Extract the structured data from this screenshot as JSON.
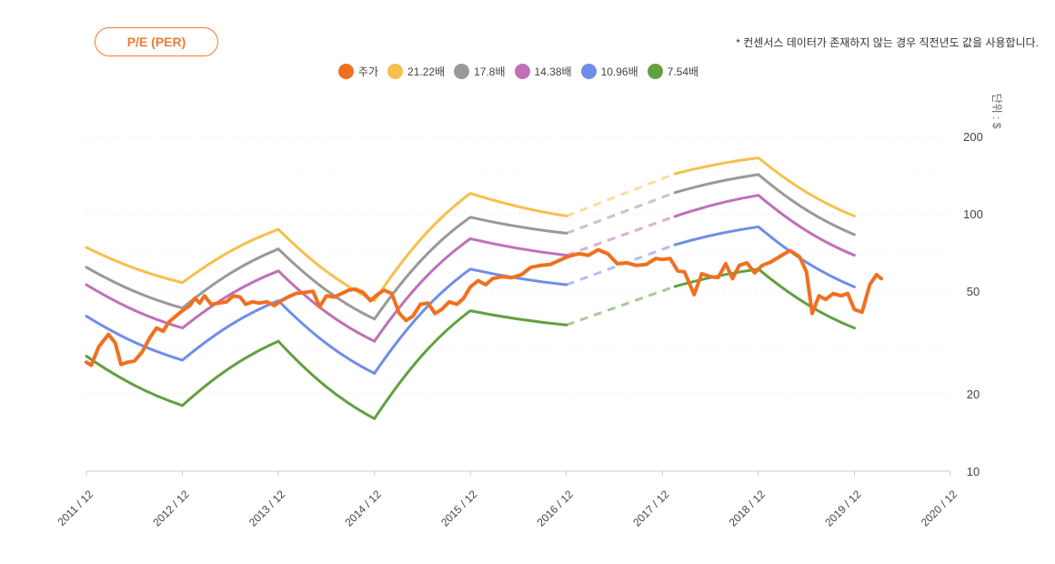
{
  "header": {
    "metric_button": "P/E (PER)",
    "note": "* 컨센서스 데이터가 존재하지 않는 경우 직전년도 값을 사용합니다."
  },
  "legend": [
    {
      "label": "주가",
      "color": "#f07020"
    },
    {
      "label": "21.22배",
      "color": "#f6c04d"
    },
    {
      "label": "17.8배",
      "color": "#999999"
    },
    {
      "label": "14.38배",
      "color": "#c070b8"
    },
    {
      "label": "10.96배",
      "color": "#6f8de8"
    },
    {
      "label": "7.54배",
      "color": "#62a040"
    }
  ],
  "chart_data": {
    "type": "line",
    "y_scale": "log",
    "ylabel": "단위 : $",
    "y_ticks": [
      10,
      20,
      50,
      100,
      200
    ],
    "ylim": [
      10,
      300
    ],
    "x_ticks": [
      "2011 / 12",
      "2012 / 12",
      "2013 / 12",
      "2014 / 12",
      "2015 / 12",
      "2016 / 12",
      "2017 / 12",
      "2018 / 12",
      "2019 / 12",
      "2020 / 12"
    ],
    "band_x": [
      2011.92,
      2012.92,
      2013.92,
      2014.92,
      2015.92,
      2016.92,
      2017.92,
      2018.92,
      2019.92
    ],
    "dashed_segment": [
      2016.92,
      2018.05
    ],
    "bands": [
      {
        "name": "21.22배",
        "color": "#f6c04d",
        "values": [
          74,
          54,
          87,
          46,
          120,
          98,
          140,
          165,
          98
        ]
      },
      {
        "name": "17.8배",
        "color": "#999999",
        "values": [
          62,
          43,
          73,
          39,
          97,
          84,
          118,
          142,
          83
        ]
      },
      {
        "name": "14.38배",
        "color": "#c070b8",
        "values": [
          53,
          36,
          60,
          32,
          80,
          69,
          95,
          118,
          69
        ]
      },
      {
        "name": "10.96배",
        "color": "#6f8de8",
        "values": [
          40,
          27,
          46,
          24,
          61,
          53,
          74,
          89,
          52
        ]
      },
      {
        "name": "7.54배",
        "color": "#62a040",
        "values": [
          28,
          18,
          32,
          16,
          42,
          37,
          51,
          61,
          36
        ]
      }
    ],
    "price": {
      "name": "주가",
      "color": "#f07020",
      "points": [
        [
          2011.92,
          26.5
        ],
        [
          2011.97,
          25.8
        ],
        [
          2012.05,
          30.5
        ],
        [
          2012.15,
          34
        ],
        [
          2012.22,
          31.5
        ],
        [
          2012.28,
          26
        ],
        [
          2012.35,
          26.5
        ],
        [
          2012.42,
          26.8
        ],
        [
          2012.5,
          29
        ],
        [
          2012.58,
          33
        ],
        [
          2012.65,
          36
        ],
        [
          2012.72,
          35
        ],
        [
          2012.78,
          38
        ],
        [
          2012.85,
          40
        ],
        [
          2012.92,
          42
        ],
        [
          2013.0,
          44
        ],
        [
          2013.05,
          47
        ],
        [
          2013.1,
          45
        ],
        [
          2013.15,
          48
        ],
        [
          2013.22,
          44.5
        ],
        [
          2013.3,
          45
        ],
        [
          2013.38,
          45.5
        ],
        [
          2013.45,
          48
        ],
        [
          2013.52,
          47.5
        ],
        [
          2013.58,
          44.5
        ],
        [
          2013.65,
          45.5
        ],
        [
          2013.72,
          45
        ],
        [
          2013.8,
          45.5
        ],
        [
          2013.88,
          44
        ],
        [
          2013.95,
          46
        ],
        [
          2014.02,
          47.5
        ],
        [
          2014.1,
          49
        ],
        [
          2014.2,
          49.5
        ],
        [
          2014.28,
          50
        ],
        [
          2014.35,
          43.5
        ],
        [
          2014.42,
          48
        ],
        [
          2014.5,
          47.5
        ],
        [
          2014.58,
          49
        ],
        [
          2014.65,
          50.5
        ],
        [
          2014.72,
          51
        ],
        [
          2014.8,
          49.5
        ],
        [
          2014.88,
          46
        ],
        [
          2014.95,
          48.5
        ],
        [
          2015.02,
          50.5
        ],
        [
          2015.1,
          49
        ],
        [
          2015.18,
          41
        ],
        [
          2015.25,
          38.5
        ],
        [
          2015.32,
          40
        ],
        [
          2015.4,
          44.5
        ],
        [
          2015.48,
          45
        ],
        [
          2015.55,
          41
        ],
        [
          2015.62,
          42.5
        ],
        [
          2015.7,
          45.5
        ],
        [
          2015.78,
          44.5
        ],
        [
          2015.85,
          47
        ],
        [
          2015.92,
          52
        ],
        [
          2016.0,
          55
        ],
        [
          2016.08,
          53
        ],
        [
          2016.15,
          56
        ],
        [
          2016.25,
          57
        ],
        [
          2016.35,
          56.5
        ],
        [
          2016.45,
          58
        ],
        [
          2016.55,
          62
        ],
        [
          2016.65,
          63
        ],
        [
          2016.75,
          63.5
        ],
        [
          2016.85,
          66
        ],
        [
          2016.95,
          68.5
        ],
        [
          2017.05,
          70
        ],
        [
          2017.15,
          69
        ],
        [
          2017.25,
          72.5
        ],
        [
          2017.35,
          70
        ],
        [
          2017.45,
          64
        ],
        [
          2017.55,
          64.5
        ],
        [
          2017.65,
          63
        ],
        [
          2017.75,
          63.5
        ],
        [
          2017.85,
          67
        ],
        [
          2017.92,
          66.5
        ],
        [
          2018.0,
          67
        ],
        [
          2018.08,
          60
        ],
        [
          2018.15,
          59.5
        ],
        [
          2018.25,
          48.5
        ],
        [
          2018.33,
          58.5
        ],
        [
          2018.42,
          57
        ],
        [
          2018.5,
          56.5
        ],
        [
          2018.58,
          64
        ],
        [
          2018.65,
          56
        ],
        [
          2018.72,
          63
        ],
        [
          2018.8,
          64.5
        ],
        [
          2018.88,
          59
        ],
        [
          2018.96,
          63
        ],
        [
          2019.05,
          65
        ],
        [
          2019.15,
          68.5
        ],
        [
          2019.25,
          72
        ],
        [
          2019.35,
          68
        ],
        [
          2019.42,
          59.5
        ],
        [
          2019.48,
          41
        ],
        [
          2019.55,
          48
        ],
        [
          2019.62,
          46.5
        ],
        [
          2019.7,
          49
        ],
        [
          2019.78,
          48
        ],
        [
          2019.85,
          49
        ],
        [
          2019.92,
          42.5
        ],
        [
          2020.0,
          41.5
        ],
        [
          2020.08,
          53
        ],
        [
          2020.15,
          58
        ],
        [
          2020.2,
          56
        ]
      ]
    }
  }
}
